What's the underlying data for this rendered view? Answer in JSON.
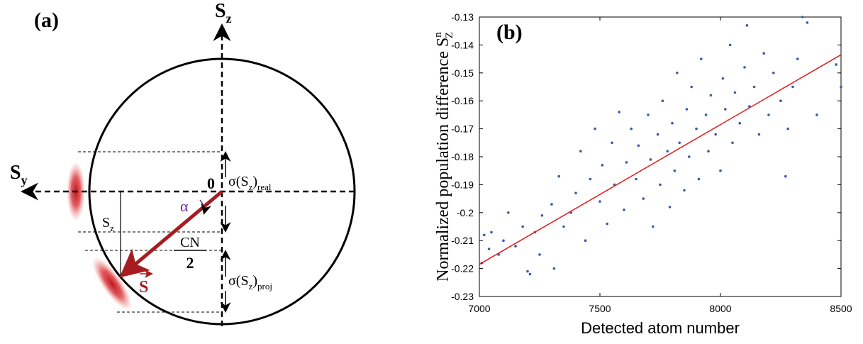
{
  "diagram": {
    "panel": "(a)",
    "sz_axis": {
      "t": "S",
      "sub": "z"
    },
    "sy_axis": {
      "t": "S",
      "sub": "y"
    },
    "origin": "0",
    "alpha": "α",
    "sz_proj": {
      "t": "S",
      "sub": "z"
    },
    "cn": {
      "num": "CN",
      "den": "2"
    },
    "sigma_real": {
      "t": "σ(S",
      "sub": "z",
      "t2": ")",
      "sub2": "real"
    },
    "sigma_proj": {
      "t": "σ(S",
      "sub": "z",
      "t2": ")",
      "sub2": "proj"
    },
    "vector": "S"
  },
  "chart_data": {
    "type": "scatter",
    "annotation": "(b)",
    "ylabel": {
      "t": "Normalized population difference S",
      "sup": "n",
      "sub": "Z"
    },
    "xlabel": "Detected atom number",
    "color": "#3a5bab",
    "x": [
      7010,
      7020,
      7040,
      7050,
      7080,
      7100,
      7120,
      7150,
      7180,
      7200,
      7210,
      7230,
      7250,
      7260,
      7300,
      7310,
      7330,
      7350,
      7380,
      7400,
      7420,
      7440,
      7460,
      7480,
      7500,
      7510,
      7530,
      7550,
      7560,
      7580,
      7600,
      7610,
      7630,
      7650,
      7660,
      7680,
      7700,
      7710,
      7720,
      7740,
      7750,
      7760,
      7780,
      7790,
      7800,
      7810,
      7820,
      7830,
      7850,
      7860,
      7870,
      7880,
      7900,
      7910,
      7920,
      7940,
      7950,
      7960,
      7980,
      8000,
      8010,
      8020,
      8040,
      8050,
      8060,
      8080,
      8100,
      8110,
      8120,
      8140,
      8160,
      8180,
      8200,
      8220,
      8250,
      8270,
      8280,
      8300,
      8320,
      8340,
      8360,
      8400,
      8480,
      8500
    ],
    "y": [
      -0.218,
      -0.208,
      -0.213,
      -0.207,
      -0.215,
      -0.21,
      -0.2,
      -0.212,
      -0.205,
      -0.221,
      -0.222,
      -0.207,
      -0.215,
      -0.201,
      -0.197,
      -0.22,
      -0.187,
      -0.205,
      -0.2,
      -0.193,
      -0.178,
      -0.21,
      -0.188,
      -0.17,
      -0.196,
      -0.183,
      -0.204,
      -0.175,
      -0.19,
      -0.164,
      -0.199,
      -0.182,
      -0.17,
      -0.188,
      -0.176,
      -0.195,
      -0.165,
      -0.181,
      -0.205,
      -0.172,
      -0.19,
      -0.16,
      -0.178,
      -0.198,
      -0.168,
      -0.185,
      -0.15,
      -0.175,
      -0.192,
      -0.163,
      -0.18,
      -0.155,
      -0.17,
      -0.188,
      -0.145,
      -0.165,
      -0.178,
      -0.158,
      -0.172,
      -0.185,
      -0.152,
      -0.163,
      -0.14,
      -0.175,
      -0.157,
      -0.168,
      -0.148,
      -0.133,
      -0.162,
      -0.155,
      -0.172,
      -0.143,
      -0.165,
      -0.15,
      -0.16,
      -0.187,
      -0.17,
      -0.155,
      -0.145,
      -0.13,
      -0.132,
      -0.165,
      -0.147,
      -0.155
    ],
    "fit": {
      "x": [
        7000,
        8500
      ],
      "y": [
        -0.2185,
        -0.1435
      ],
      "color": "#e41a1c"
    },
    "xlim": [
      7000,
      8500
    ],
    "xticks": [
      7000,
      7500,
      8000,
      8500
    ],
    "ylim": [
      -0.23,
      -0.13
    ],
    "yticks": [
      -0.23,
      -0.22,
      -0.21,
      -0.2,
      -0.19,
      -0.18,
      -0.17,
      -0.16,
      -0.15,
      -0.14,
      -0.13
    ]
  }
}
